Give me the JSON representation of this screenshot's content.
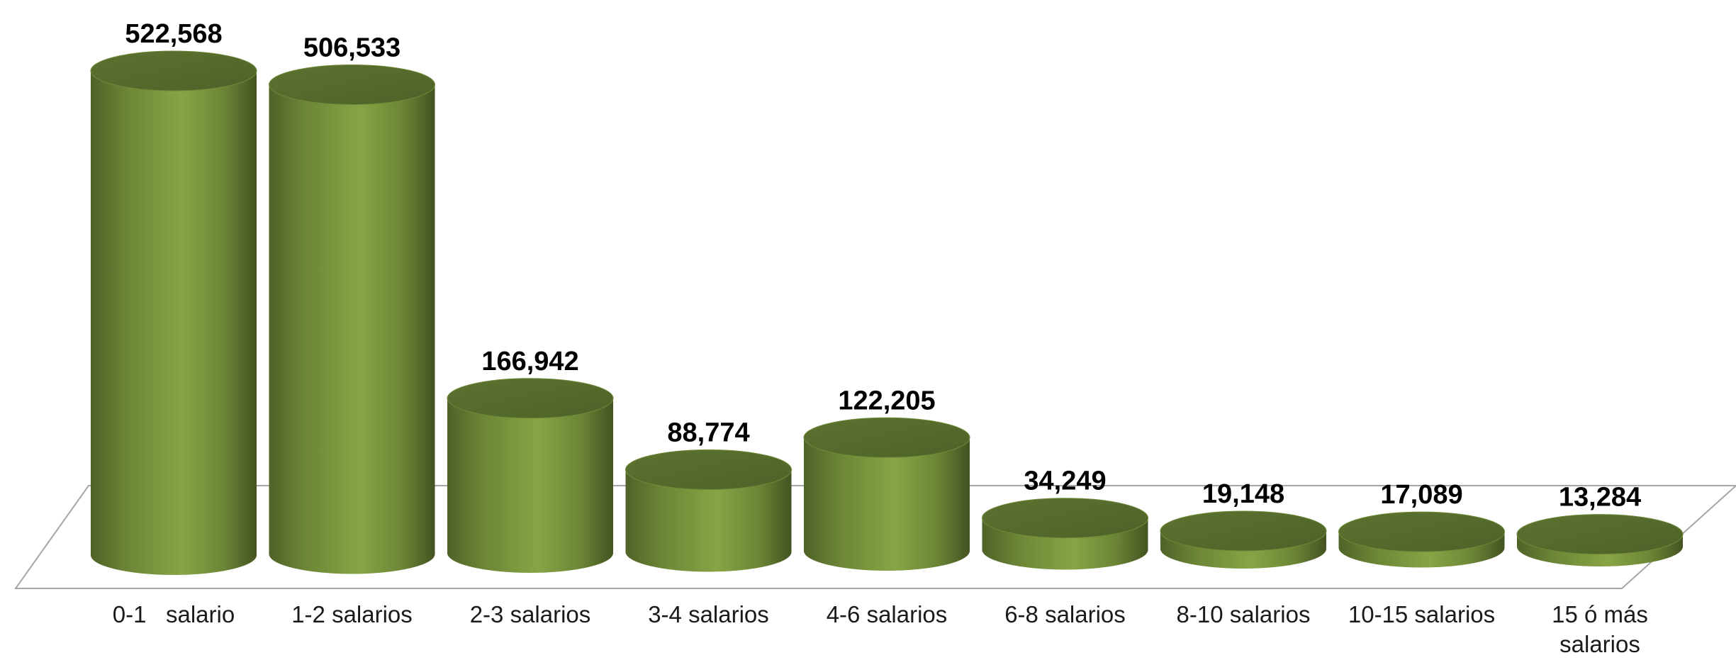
{
  "chart_data": {
    "type": "bar",
    "style": "3d-cylinder",
    "categories": [
      [
        "0-1   salario"
      ],
      [
        "1-2 salarios"
      ],
      [
        "2-3 salarios"
      ],
      [
        "3-4 salarios"
      ],
      [
        "4-6 salarios"
      ],
      [
        "6-8 salarios"
      ],
      [
        "8-10 salarios"
      ],
      [
        "10-15 salarios"
      ],
      [
        "15 ó más",
        "salarios"
      ]
    ],
    "values": [
      522568,
      506533,
      166942,
      88774,
      122205,
      34249,
      19148,
      17089,
      13284
    ],
    "value_labels": [
      "522,568",
      "506,533",
      "166,942",
      "88,774",
      "122,205",
      "34,249",
      "19,148",
      "17,089",
      "13,284"
    ],
    "ylim": [
      0,
      522568
    ],
    "grid": false,
    "legend": "none",
    "colors": {
      "bar": "#77933c",
      "bar_light": "#9bbb59",
      "bar_dark": "#4f6228",
      "top": "#5f7530",
      "floor": "#a6a6a6"
    }
  }
}
